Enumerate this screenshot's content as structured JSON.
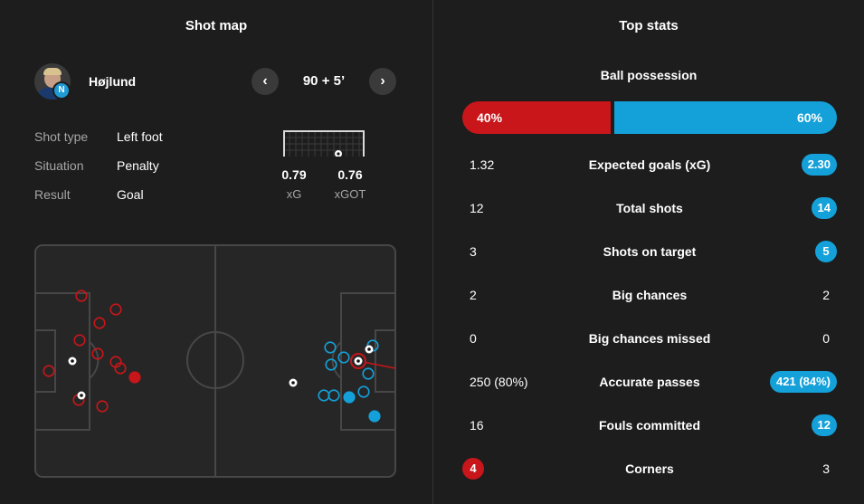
{
  "shot_map": {
    "title": "Shot map",
    "player": {
      "name": "Højlund"
    },
    "minute": "90 + 5’",
    "details": [
      {
        "label": "Shot type",
        "value": "Left foot"
      },
      {
        "label": "Situation",
        "value": "Penalty"
      },
      {
        "label": "Result",
        "value": "Goal"
      }
    ],
    "xg": {
      "value": "0.79",
      "label": "xG"
    },
    "xgot": {
      "value": "0.76",
      "label": "xGOT"
    },
    "colors": {
      "home": "#c8161a",
      "away": "#14a0d8",
      "pitch": "#262626",
      "lines": "#474747"
    }
  },
  "top_stats": {
    "title": "Top stats",
    "possession": {
      "label": "Ball possession",
      "home": "40%",
      "away": "60%",
      "home_pct": 40,
      "away_pct": 60
    },
    "rows": [
      {
        "name": "Expected goals (xG)",
        "home": "1.32",
        "away": "2.30",
        "highlight": "away"
      },
      {
        "name": "Total shots",
        "home": "12",
        "away": "14",
        "highlight": "away"
      },
      {
        "name": "Shots on target",
        "home": "3",
        "away": "5",
        "highlight": "away"
      },
      {
        "name": "Big chances",
        "home": "2",
        "away": "2",
        "highlight": "none"
      },
      {
        "name": "Big chances missed",
        "home": "0",
        "away": "0",
        "highlight": "none"
      },
      {
        "name": "Accurate passes",
        "home": "250 (80%)",
        "away": "421 (84%)",
        "highlight": "away"
      },
      {
        "name": "Fouls committed",
        "home": "16",
        "away": "12",
        "highlight": "away"
      },
      {
        "name": "Corners",
        "home": "4",
        "away": "3",
        "highlight": "home"
      }
    ]
  }
}
